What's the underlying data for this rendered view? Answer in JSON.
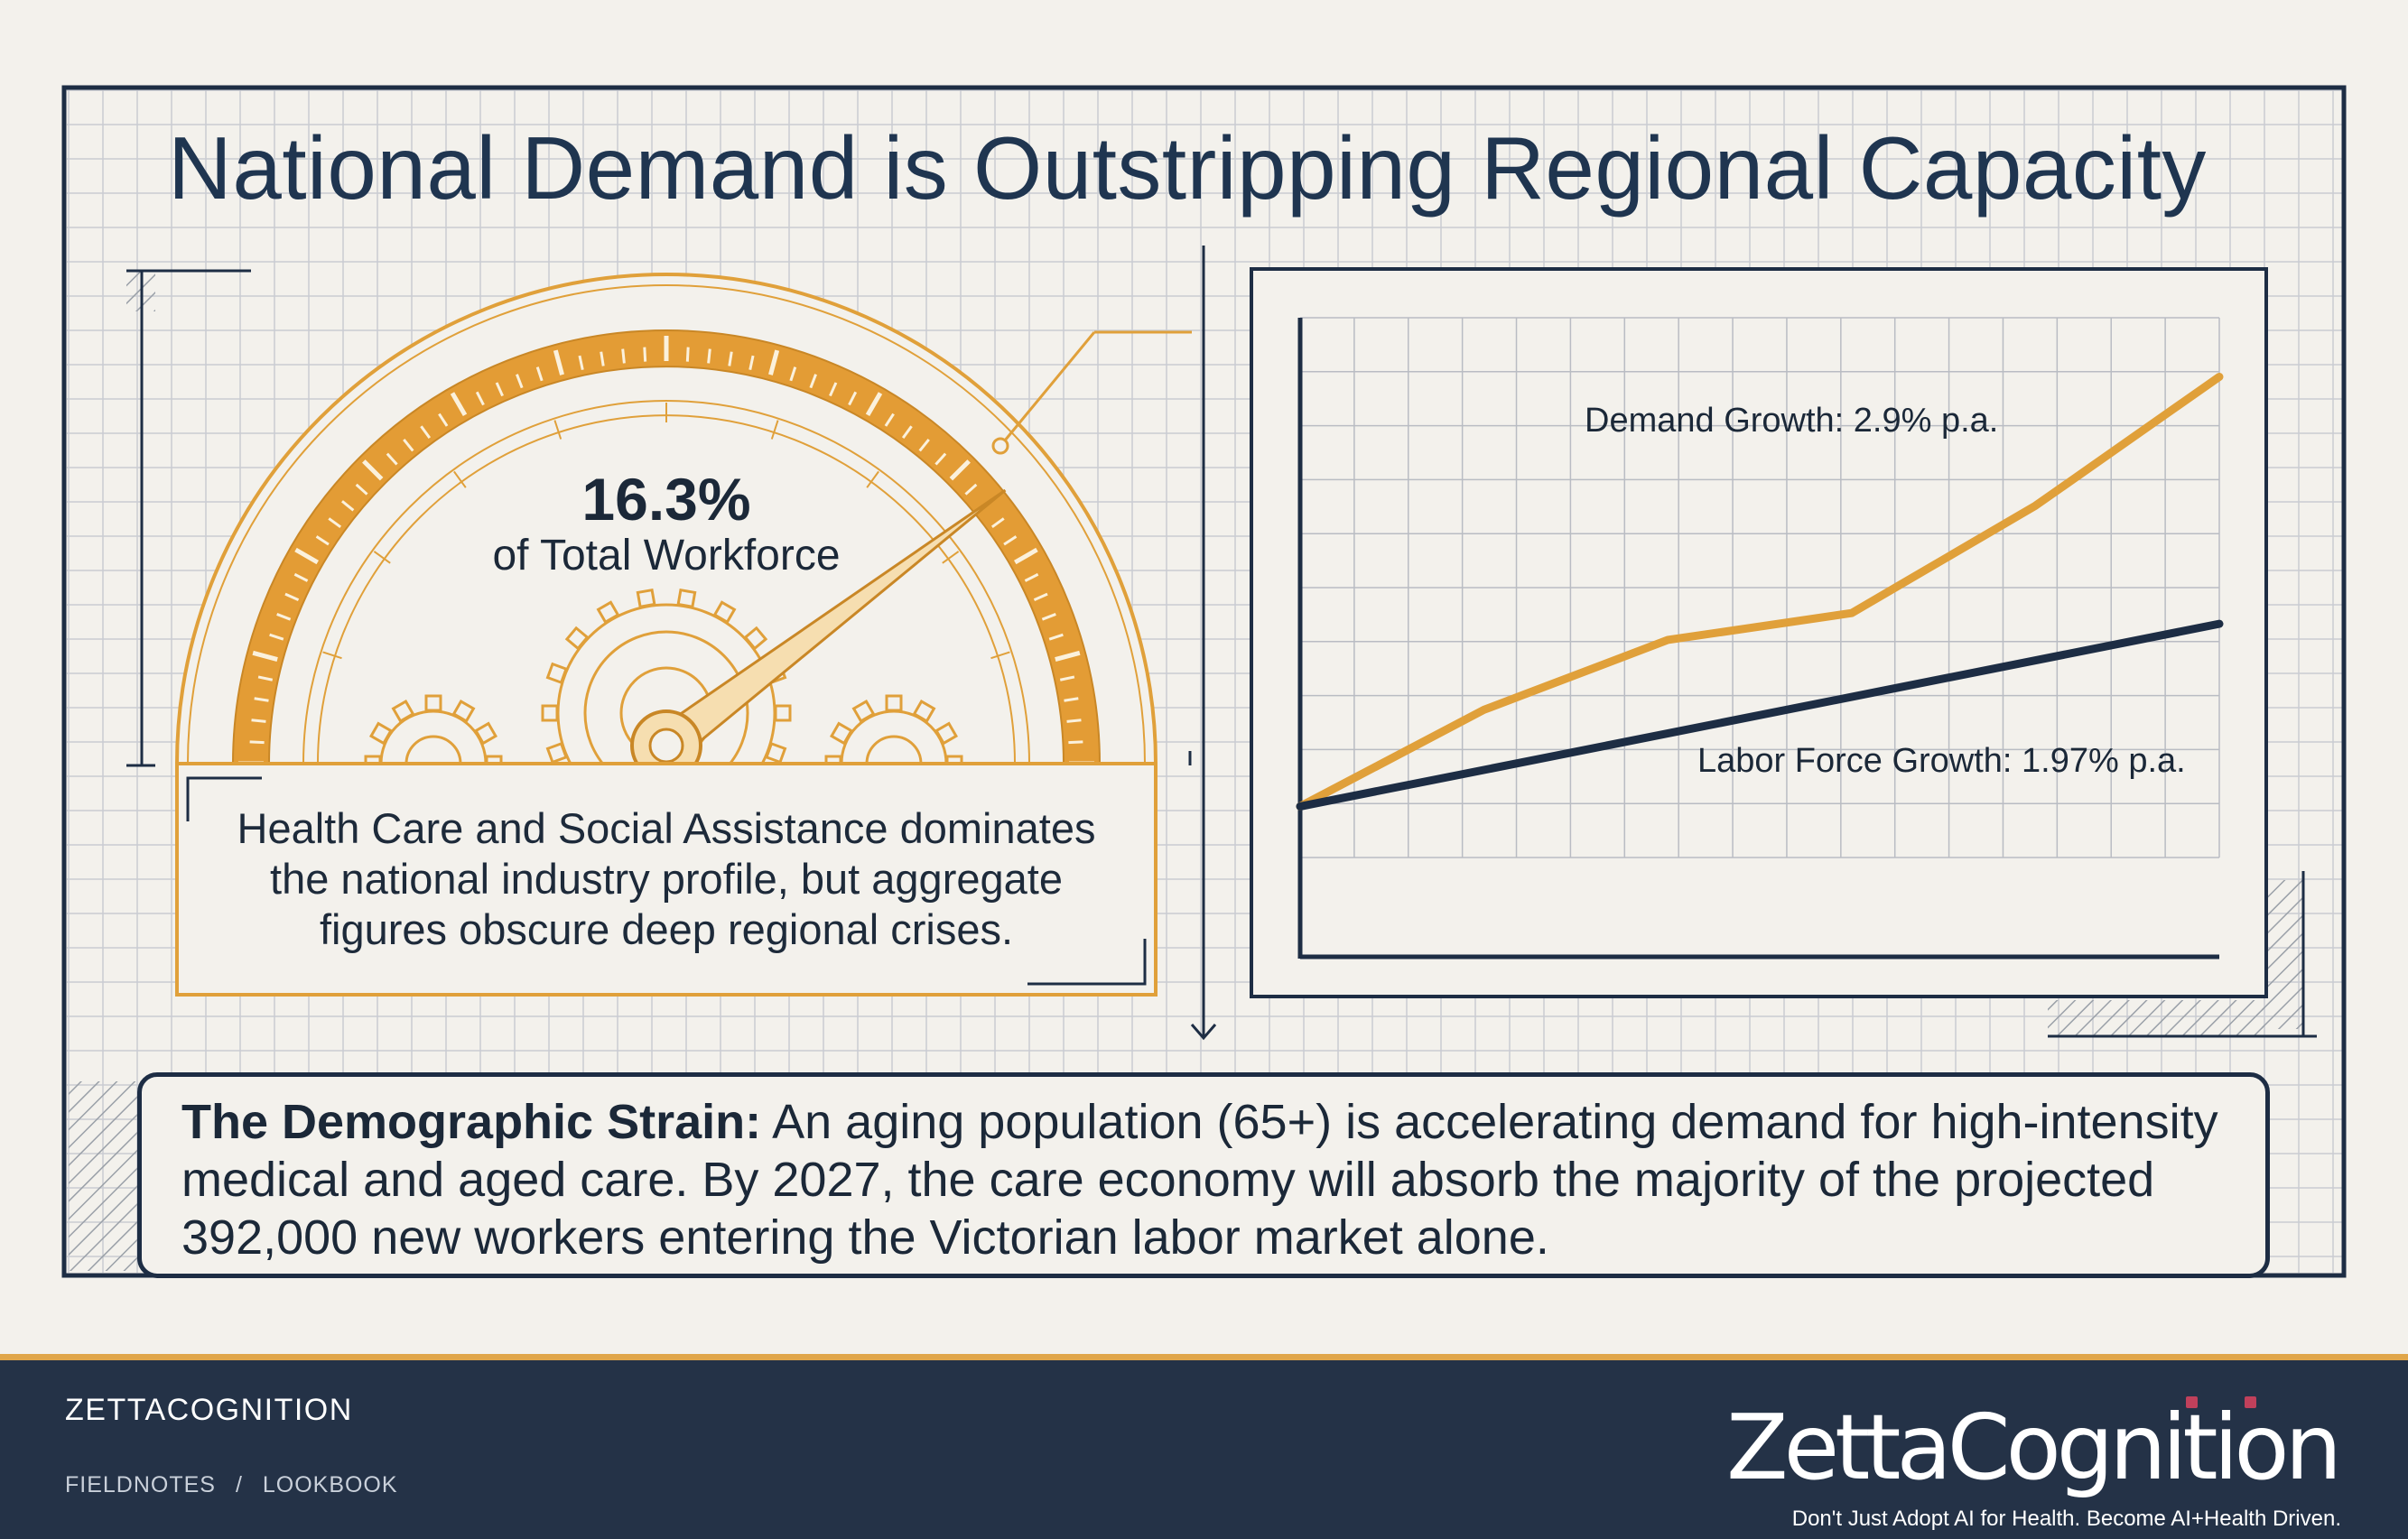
{
  "title": "National Demand is Outstripping Regional Capacity",
  "colors": {
    "background": "#f3f1ec",
    "grid": "#c9ccd2",
    "navy": "#1d2d44",
    "gold": "#e0a03a",
    "footer": "#243247"
  },
  "gauge": {
    "value_text": "16.3%",
    "label": "of Total Workforce",
    "value_fraction": 0.163,
    "caption": "Health Care and Social Assistance dominates the national industry profile, but aggregate figures obscure deep regional crises."
  },
  "chart_data": {
    "type": "line",
    "title": "",
    "xlabel": "",
    "ylabel": "",
    "grid": true,
    "series": [
      {
        "name": "Demand Growth: 2.9% p.a.",
        "color": "#e0a03a",
        "points": [
          [
            0,
            0.5
          ],
          [
            1,
            2.3
          ],
          [
            2,
            3.6
          ],
          [
            3,
            4.1
          ],
          [
            4,
            6.1
          ],
          [
            5,
            8.5
          ]
        ]
      },
      {
        "name": "Labor Force Growth: 1.97% p.a.",
        "color": "#1d2d44",
        "points": [
          [
            0,
            0.5
          ],
          [
            5,
            3.9
          ]
        ]
      }
    ],
    "xlim": [
      0,
      5
    ],
    "ylim": [
      -2.3,
      9.6
    ]
  },
  "note": {
    "lead": "The Demographic Strain:",
    "body": "An aging population (65+) is accelerating demand for high-intensity medical and aged care. By 2027, the care economy will absorb the majority of the projected 392,000 new workers entering the Victorian labor market alone."
  },
  "footer": {
    "brand": "ZETTACOGNITION",
    "breadcrumb": [
      "FIELDNOTES",
      "/",
      "LOOKBOOK"
    ],
    "logo_text": "ZettaCognition",
    "tagline": "Don't Just Adopt AI for Health. Become AI+Health Driven."
  }
}
